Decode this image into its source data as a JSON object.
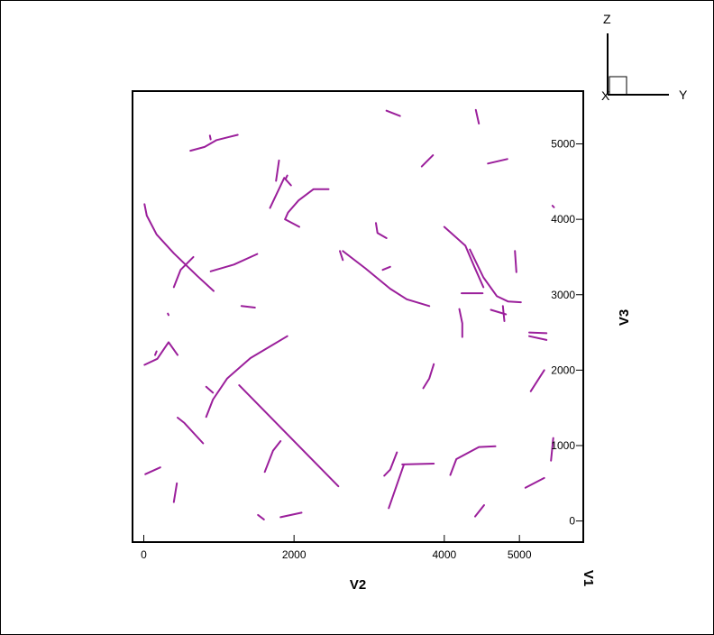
{
  "chart_data": {
    "type": "line",
    "title": "",
    "xlabel": "V2",
    "ylabel": "V3",
    "extra_axis_label": "V1",
    "xlim": [
      -150,
      5850
    ],
    "ylim": [
      -280,
      5700
    ],
    "x_ticks": [
      0,
      2000,
      4000,
      5000
    ],
    "y_ticks": [
      0,
      1000,
      2000,
      3000,
      4000,
      5000
    ],
    "grid": false,
    "line_color": "#9b1f9b",
    "axis_triad": {
      "vertical": "Z",
      "horizontal": "Y",
      "depth": "X"
    },
    "series": [
      {
        "points": [
          [
            620,
            4910
          ],
          [
            810,
            4960
          ],
          [
            970,
            5050
          ],
          [
            1250,
            5120
          ]
        ]
      },
      {
        "points": [
          [
            880,
            5110
          ],
          [
            890,
            5060
          ]
        ]
      },
      {
        "points": [
          [
            1760,
            4510
          ],
          [
            1800,
            4780
          ]
        ]
      },
      {
        "points": [
          [
            1680,
            4150
          ],
          [
            1870,
            4550
          ],
          [
            1960,
            4450
          ]
        ]
      },
      {
        "points": [
          [
            1890,
            4540
          ],
          [
            1910,
            4580
          ]
        ]
      },
      {
        "points": [
          [
            1880,
            4000
          ],
          [
            2070,
            3900
          ]
        ]
      },
      {
        "points": [
          [
            1880,
            4000
          ],
          [
            1920,
            4090
          ],
          [
            2060,
            4250
          ],
          [
            2260,
            4400
          ],
          [
            2460,
            4400
          ]
        ]
      },
      {
        "points": [
          [
            10,
            4200
          ],
          [
            40,
            4050
          ],
          [
            170,
            3800
          ],
          [
            400,
            3550
          ],
          [
            710,
            3250
          ],
          [
            930,
            3050
          ]
        ]
      },
      {
        "points": [
          [
            400,
            3100
          ],
          [
            490,
            3330
          ],
          [
            660,
            3500
          ]
        ]
      },
      {
        "points": [
          [
            890,
            3310
          ],
          [
            1200,
            3400
          ],
          [
            1510,
            3540
          ]
        ]
      },
      {
        "points": [
          [
            1300,
            2850
          ],
          [
            1480,
            2830
          ]
        ]
      },
      {
        "points": [
          [
            320,
            2750
          ],
          [
            330,
            2730
          ]
        ]
      },
      {
        "points": [
          [
            10,
            2070
          ],
          [
            180,
            2150
          ],
          [
            330,
            2370
          ],
          [
            450,
            2200
          ]
        ]
      },
      {
        "points": [
          [
            150,
            2200
          ],
          [
            170,
            2250
          ]
        ]
      },
      {
        "points": [
          [
            2610,
            3580
          ],
          [
            2650,
            3460
          ]
        ]
      },
      {
        "points": [
          [
            2650,
            3580
          ],
          [
            2950,
            3350
          ],
          [
            3280,
            3080
          ],
          [
            3500,
            2940
          ],
          [
            3800,
            2850
          ]
        ]
      },
      {
        "points": [
          [
            3090,
            3950
          ],
          [
            3110,
            3820
          ],
          [
            3230,
            3750
          ]
        ]
      },
      {
        "points": [
          [
            3180,
            3330
          ],
          [
            3280,
            3370
          ]
        ]
      },
      {
        "points": [
          [
            3230,
            5440
          ],
          [
            3410,
            5370
          ]
        ]
      },
      {
        "points": [
          [
            3700,
            4700
          ],
          [
            3850,
            4850
          ]
        ]
      },
      {
        "points": [
          [
            4420,
            5450
          ],
          [
            4460,
            5270
          ]
        ]
      },
      {
        "points": [
          [
            4580,
            4740
          ],
          [
            4840,
            4800
          ]
        ]
      },
      {
        "points": [
          [
            4000,
            3900
          ],
          [
            4280,
            3650
          ],
          [
            4400,
            3370
          ],
          [
            4520,
            3100
          ]
        ]
      },
      {
        "points": [
          [
            4340,
            3600
          ],
          [
            4520,
            3230
          ],
          [
            4700,
            2980
          ],
          [
            4850,
            2910
          ],
          [
            5020,
            2900
          ]
        ]
      },
      {
        "points": [
          [
            4230,
            3020
          ],
          [
            4510,
            3020
          ]
        ]
      },
      {
        "points": [
          [
            4940,
            3580
          ],
          [
            4960,
            3300
          ]
        ]
      },
      {
        "points": [
          [
            4620,
            2800
          ],
          [
            4820,
            2740
          ]
        ]
      },
      {
        "points": [
          [
            4780,
            2850
          ],
          [
            4800,
            2650
          ]
        ]
      },
      {
        "points": [
          [
            4200,
            2810
          ],
          [
            4240,
            2620
          ],
          [
            4240,
            2440
          ]
        ]
      },
      {
        "points": [
          [
            5130,
            2500
          ],
          [
            5360,
            2490
          ]
        ]
      },
      {
        "points": [
          [
            5130,
            2450
          ],
          [
            5360,
            2400
          ]
        ]
      },
      {
        "points": [
          [
            5440,
            4180
          ],
          [
            5460,
            4160
          ]
        ]
      },
      {
        "points": [
          [
            5150,
            1720
          ],
          [
            5330,
            2000
          ]
        ]
      },
      {
        "points": [
          [
            3720,
            1760
          ],
          [
            3800,
            1890
          ],
          [
            3860,
            2080
          ]
        ]
      },
      {
        "points": [
          [
            830,
            1380
          ],
          [
            920,
            1610
          ],
          [
            1110,
            1890
          ],
          [
            1420,
            2160
          ],
          [
            1910,
            2450
          ]
        ]
      },
      {
        "points": [
          [
            830,
            1780
          ],
          [
            920,
            1700
          ]
        ]
      },
      {
        "points": [
          [
            1270,
            1800
          ],
          [
            2590,
            460
          ]
        ]
      },
      {
        "points": [
          [
            450,
            1370
          ],
          [
            540,
            1300
          ],
          [
            790,
            1030
          ]
        ]
      },
      {
        "points": [
          [
            20,
            620
          ],
          [
            220,
            710
          ]
        ]
      },
      {
        "points": [
          [
            400,
            250
          ],
          [
            440,
            500
          ]
        ]
      },
      {
        "points": [
          [
            1610,
            650
          ],
          [
            1720,
            930
          ],
          [
            1820,
            1060
          ]
        ]
      },
      {
        "points": [
          [
            3260,
            170
          ],
          [
            3460,
            740
          ]
        ]
      },
      {
        "points": [
          [
            3200,
            600
          ],
          [
            3280,
            680
          ],
          [
            3370,
            910
          ]
        ]
      },
      {
        "points": [
          [
            3440,
            750
          ],
          [
            3860,
            760
          ]
        ]
      },
      {
        "points": [
          [
            4080,
            610
          ],
          [
            4160,
            820
          ],
          [
            4460,
            980
          ],
          [
            4680,
            990
          ]
        ]
      },
      {
        "points": [
          [
            4410,
            60
          ],
          [
            4530,
            210
          ]
        ]
      },
      {
        "points": [
          [
            5080,
            440
          ],
          [
            5330,
            570
          ]
        ]
      },
      {
        "points": [
          [
            5420,
            800
          ],
          [
            5450,
            1100
          ]
        ]
      },
      {
        "points": [
          [
            1520,
            80
          ],
          [
            1600,
            20
          ]
        ]
      },
      {
        "points": [
          [
            1820,
            50
          ],
          [
            2100,
            110
          ]
        ]
      }
    ]
  }
}
